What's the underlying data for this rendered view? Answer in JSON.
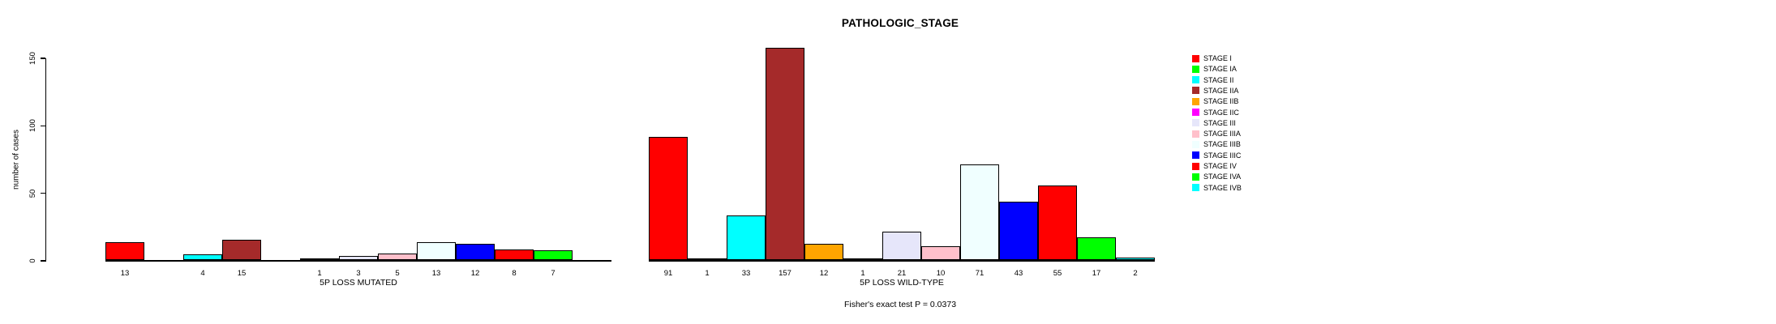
{
  "chart_data": {
    "type": "bar",
    "title": "PATHOLOGIC_STAGE",
    "ylabel": "number of cases",
    "yticks": [
      0,
      50,
      100,
      150
    ],
    "ylim": [
      0,
      157
    ],
    "grid": false,
    "legend_position": "right",
    "annotation": "Fisher's exact test P = 0.0373",
    "stages": [
      {
        "name": "STAGE I",
        "color": "#ff0000"
      },
      {
        "name": "STAGE IA",
        "color": "#00ff00"
      },
      {
        "name": "STAGE II",
        "color": "#00ffff"
      },
      {
        "name": "STAGE IIA",
        "color": "#a52a2a"
      },
      {
        "name": "STAGE IIB",
        "color": "#ffa500"
      },
      {
        "name": "STAGE IIC",
        "color": "#ff00ff"
      },
      {
        "name": "STAGE III",
        "color": "#e6e6fa"
      },
      {
        "name": "STAGE IIIA",
        "color": "#ffc0cb"
      },
      {
        "name": "STAGE IIIB",
        "color": "#f0ffff"
      },
      {
        "name": "STAGE IIIC",
        "color": "#0000ff"
      },
      {
        "name": "STAGE IV",
        "color": "#ff0000"
      },
      {
        "name": "STAGE IVA",
        "color": "#00ff00"
      },
      {
        "name": "STAGE IVB",
        "color": "#00ffff"
      }
    ],
    "groups": [
      {
        "label": "5P LOSS MUTATED",
        "values": [
          13,
          null,
          4,
          15,
          null,
          1,
          3,
          5,
          13,
          12,
          8,
          7,
          null
        ]
      },
      {
        "label": "5P LOSS WILD-TYPE",
        "values": [
          91,
          1,
          33,
          157,
          12,
          1,
          21,
          10,
          71,
          43,
          55,
          17,
          2
        ]
      }
    ]
  }
}
